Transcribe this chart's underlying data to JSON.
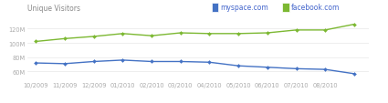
{
  "title": "Unique Visitors",
  "legend_labels": [
    "myspace.com",
    "facebook.com"
  ],
  "x_labels": [
    "10/2009",
    "11/2009",
    "12/2009",
    "01/2010",
    "02/2010",
    "03/2010",
    "04/2010",
    "05/2010",
    "06/2010",
    "07/2010",
    "08/2010"
  ],
  "facebook_data": [
    102,
    106,
    109,
    113,
    110,
    114,
    113,
    113,
    114,
    118,
    118,
    126
  ],
  "myspace_data": [
    72,
    71,
    74,
    76,
    74,
    74,
    73,
    68,
    66,
    64,
    63,
    57
  ],
  "x_positions": [
    0,
    1,
    2,
    3,
    4,
    5,
    6,
    7,
    8,
    9,
    10,
    11
  ],
  "x_tick_positions": [
    0,
    1,
    2,
    3,
    4,
    5,
    6,
    7,
    8,
    9,
    10
  ],
  "yticks": [
    60,
    80,
    100,
    120
  ],
  "ytick_labels": [
    "60M",
    "80M",
    "100M",
    "120M"
  ],
  "ylim": [
    48,
    135
  ],
  "xlim": [
    -0.3,
    11.5
  ],
  "background_color": "#ffffff",
  "facebook_color": "#7cb832",
  "myspace_color": "#4472c4",
  "myspace_legend_color": "#4472c4",
  "facebook_legend_color": "#7cb832",
  "grid_color": "#e8e8e8",
  "title_color": "#888888",
  "tick_color": "#aaaaaa",
  "legend_text_color": "#4466cc",
  "title_fontsize": 5.5,
  "tick_fontsize": 4.8,
  "legend_fontsize": 5.5
}
